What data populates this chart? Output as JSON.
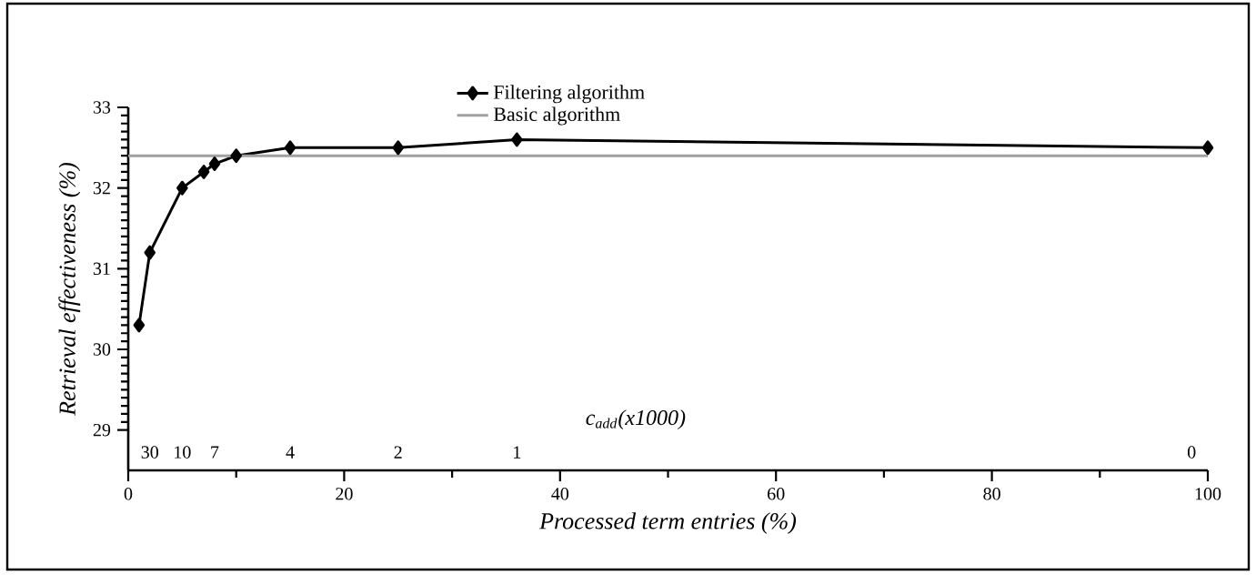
{
  "chart_data": {
    "type": "line",
    "xlabel": "Processed term entries (%)",
    "ylabel": "Retrieval effectiveness (%)",
    "xlim": [
      0,
      100
    ],
    "xticks": [
      0,
      20,
      40,
      60,
      80,
      100
    ],
    "ylim": [
      28.5,
      33
    ],
    "yticks": [
      29,
      30,
      31,
      32,
      33
    ],
    "series": [
      {
        "name": "Filtering algorithm",
        "color": "#000000",
        "marker": "diamond",
        "x": [
          1,
          2,
          5,
          7,
          8,
          10,
          15,
          25,
          36,
          100
        ],
        "values": [
          30.3,
          31.2,
          32.0,
          32.2,
          32.3,
          32.4,
          32.5,
          32.5,
          32.6,
          32.5
        ]
      },
      {
        "name": "Basic algorithm",
        "color": "#a0a0a0",
        "marker": "none",
        "x": [
          0,
          100
        ],
        "values": [
          32.4,
          32.4
        ]
      }
    ],
    "annotations": [
      "c$_{add}$(x1000)",
      "30",
      "10",
      "7",
      "4",
      "2",
      "1",
      "0"
    ],
    "legend": "top",
    "grid": false
  }
}
